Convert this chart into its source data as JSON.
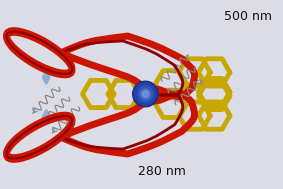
{
  "bg_color": "#dcdce6",
  "label_500": "500 nm",
  "label_280": "280 nm",
  "wavy_color": "#888888",
  "blue_arrow_color": "#8ab0d8",
  "red_color": "#cc1500",
  "red_dark": "#8b0000",
  "yellow_color": "#c8a800",
  "yellow_dark": "#8b7000",
  "blue_metal_color": "#2244aa",
  "blue_metal_light": "#5577cc",
  "figsize": [
    2.83,
    1.89
  ],
  "dpi": 100,
  "label_fontsize": 9
}
